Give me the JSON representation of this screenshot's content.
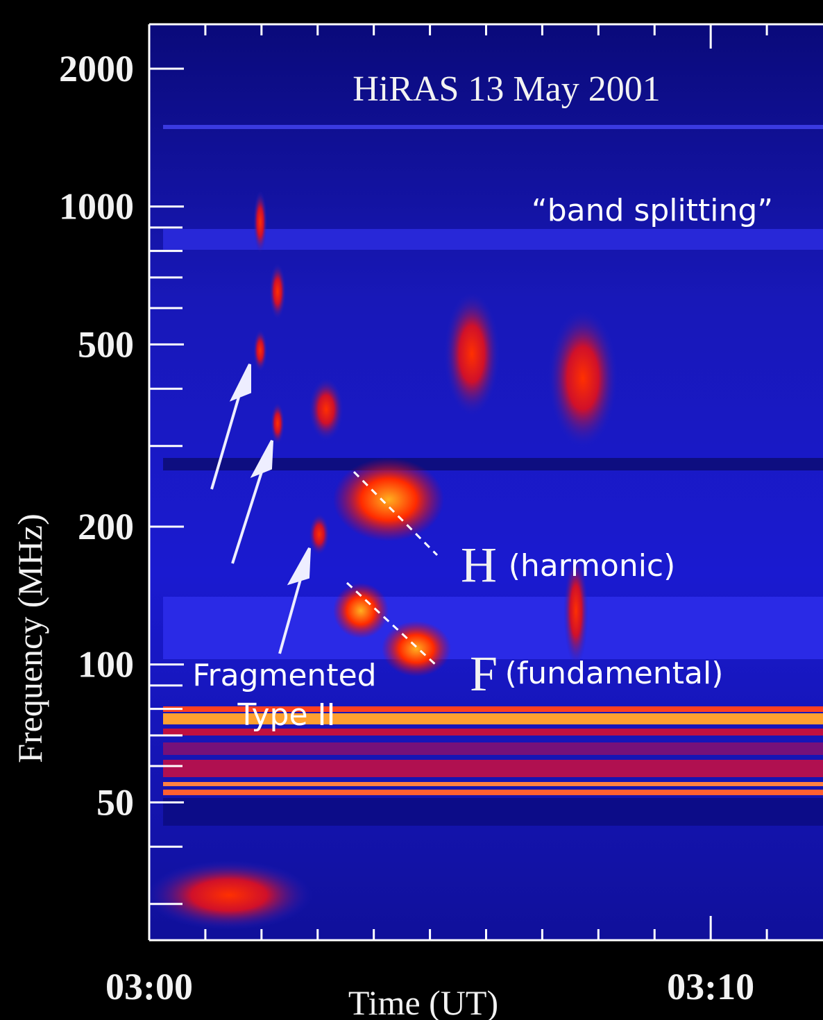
{
  "chart_data": {
    "type": "spectrogram",
    "title": "HiRAS 13 May 2001",
    "xlabel": "Time (UT)",
    "ylabel": "Frequency (MHz)",
    "ylog": true,
    "ylim": [
      25,
      2500
    ],
    "yticks": [
      50,
      100,
      200,
      500,
      1000,
      2000
    ],
    "yminor": [
      30,
      40,
      60,
      70,
      80,
      90,
      300,
      400,
      600,
      700,
      800,
      900
    ],
    "xlim": [
      0,
      12
    ],
    "xticks": [
      {
        "value": 0,
        "label": "03:00"
      },
      {
        "value": 10,
        "label": "03:10"
      }
    ],
    "xminor": [
      1,
      2,
      3,
      4,
      5,
      6,
      7,
      8,
      9,
      11
    ],
    "annotations": [
      "“band splitting”",
      "H",
      "(harmonic)",
      "F",
      "(fundamental)",
      "Fragmented",
      "Type II"
    ]
  }
}
